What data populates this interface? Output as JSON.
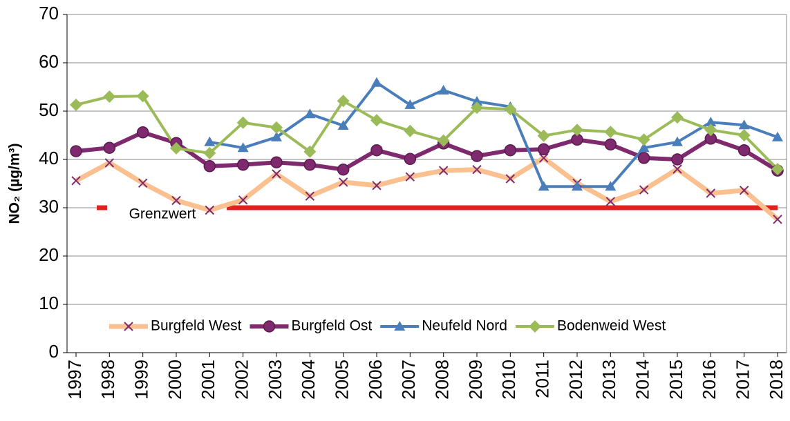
{
  "chart_data": {
    "type": "line",
    "y_label": "NO₂ (µg/m³)",
    "categories": [
      "1997",
      "1998",
      "1999",
      "2000",
      "2001",
      "2002",
      "2003",
      "2004",
      "2005",
      "2006",
      "2007",
      "2008",
      "2009",
      "2010",
      "2011",
      "2012",
      "2013",
      "2014",
      "2015",
      "2016",
      "2017",
      "2018"
    ],
    "series": [
      {
        "name": "Burgfeld West",
        "color": "#fac090",
        "marker": "x",
        "marker_color": "#7f2a6e",
        "values": [
          35.6,
          39.3,
          35.1,
          31.5,
          29.5,
          31.6,
          37,
          32.4,
          35.3,
          34.6,
          36.4,
          37.7,
          37.9,
          36,
          40.3,
          35.1,
          31.3,
          33.7,
          38,
          33,
          33.6,
          27.6
        ]
      },
      {
        "name": "Burgfeld Ost",
        "color": "#7f2a6e",
        "marker": "circle",
        "marker_color": "#7f2a6e",
        "values": [
          41.7,
          42.4,
          45.6,
          43.4,
          38.6,
          38.9,
          39.4,
          38.9,
          37.9,
          41.9,
          40.1,
          43.3,
          40.7,
          41.9,
          42.1,
          44.1,
          43.1,
          40.3,
          40,
          44.3,
          41.9,
          37.7
        ]
      },
      {
        "name": "Neufeld Nord",
        "color": "#4a7ebb",
        "marker": "triangle",
        "marker_color": "#4a7ebb",
        "values": [
          null,
          null,
          null,
          null,
          43.6,
          42.4,
          44.6,
          49.4,
          47,
          55.9,
          51.3,
          54.3,
          52,
          50.9,
          34.4,
          34.4,
          34.4,
          42.4,
          43.6,
          47.7,
          47.1,
          44.6
        ]
      },
      {
        "name": "Bodenweid West",
        "color": "#9bbb59",
        "marker": "diamond",
        "marker_color": "#9bbb59",
        "values": [
          51.3,
          53,
          53.1,
          42.3,
          41.3,
          47.6,
          46.6,
          41.6,
          52.1,
          48.1,
          45.9,
          43.9,
          50.7,
          50.4,
          44.9,
          46.1,
          45.7,
          44.1,
          48.7,
          46.1,
          45,
          38
        ]
      }
    ],
    "limit": {
      "label": "Grenzwert",
      "value": 30,
      "color": "#e3211c"
    },
    "ylim": [
      0,
      70
    ],
    "yticks": [
      0,
      10,
      20,
      30,
      40,
      50,
      60,
      70
    ],
    "grid": true,
    "legend": "bottom"
  }
}
